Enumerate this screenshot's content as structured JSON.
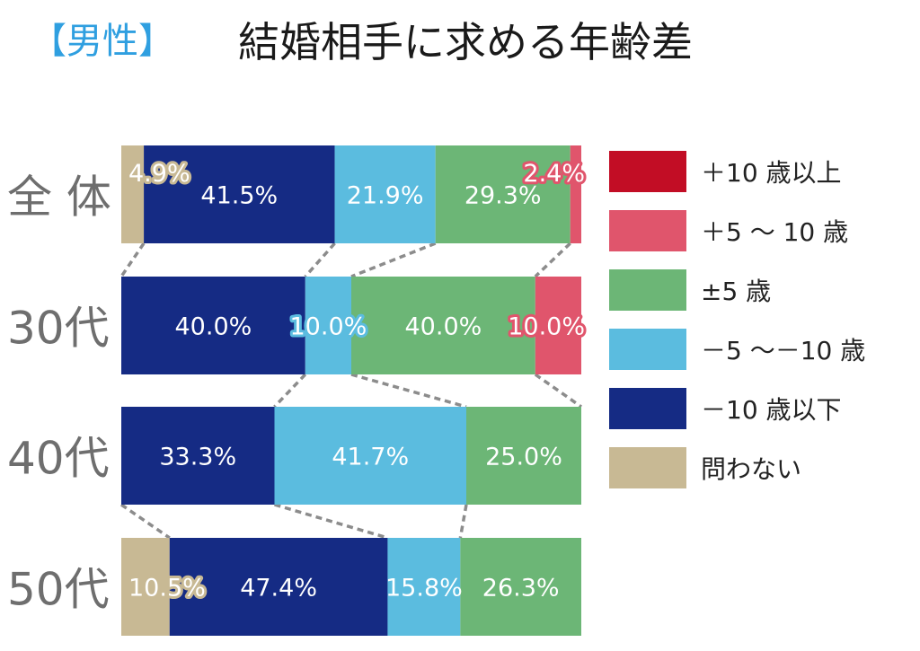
{
  "title_tag": "【男性】",
  "title": "結婚相手に求める年齢差",
  "colors": {
    "title_tag": "#2f9fe0",
    "row_label": "#6e6e6e",
    "connector": "#8c8c8c",
    "label_text": "#ffffff"
  },
  "chart_data": {
    "type": "bar",
    "orientation": "horizontal",
    "stacked": true,
    "normalized_100": true,
    "title": "【男性】 結婚相手に求める年齢差",
    "categories": [
      "全 体",
      "30代",
      "40代",
      "50代"
    ],
    "series": [
      {
        "name": "問わない",
        "color": "#c8b994",
        "values": [
          4.9,
          0,
          0,
          10.5
        ]
      },
      {
        "name": "－10 歳以下",
        "color": "#152b84",
        "values": [
          41.5,
          40.0,
          33.3,
          47.4
        ]
      },
      {
        "name": "－5 ～－10 歳",
        "color": "#5bbcdf",
        "values": [
          21.9,
          10.0,
          41.7,
          15.8
        ]
      },
      {
        "name": "±5 歳",
        "color": "#6cb676",
        "values": [
          29.3,
          40.0,
          25.0,
          26.3
        ]
      },
      {
        "name": "＋5 ～ 10 歳",
        "color": "#e0556c",
        "values": [
          2.4,
          10.0,
          0,
          0
        ]
      },
      {
        "name": "＋10 歳以上",
        "color": "#c20d25",
        "values": [
          0,
          0,
          0,
          0
        ]
      }
    ],
    "value_labels": [
      [
        "4.9%",
        "41.5%",
        "21.9%",
        "29.3%",
        "2.4%",
        ""
      ],
      [
        "",
        "40.0%",
        "10.0%",
        "40.0%",
        "10.0%",
        ""
      ],
      [
        "",
        "33.3%",
        "41.7%",
        "25.0%",
        "",
        ""
      ],
      [
        "10.5%",
        "47.4%",
        "15.8%",
        "26.3%",
        "",
        ""
      ]
    ],
    "legend": {
      "position": "right",
      "order": [
        "＋10 歳以上",
        "＋5 ～ 10 歳",
        "±5 歳",
        "－5 ～－10 歳",
        "－10 歳以下",
        "問わない"
      ]
    },
    "connectors": "dashed lines between boundaries of adjacent bars",
    "grid": false
  }
}
